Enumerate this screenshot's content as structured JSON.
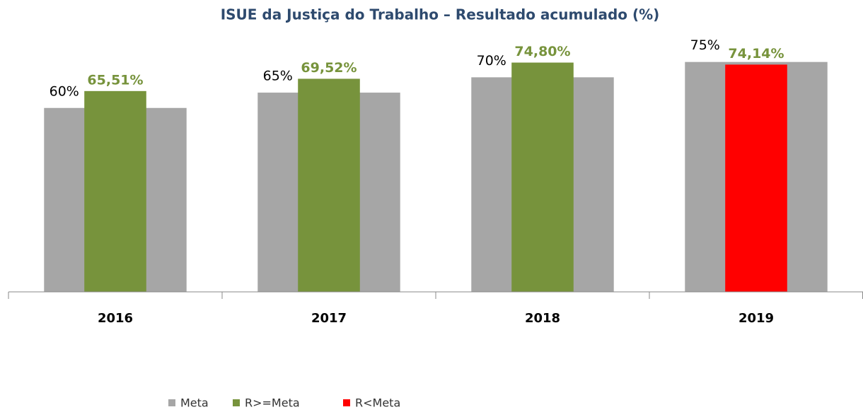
{
  "chart_data": {
    "type": "bar",
    "title": "ISUE da Justiça do Trabalho – Resultado acumulado (%)",
    "categories": [
      "2016",
      "2017",
      "2018",
      "2019"
    ],
    "series": [
      {
        "name": "Meta",
        "color": "#a6a6a6",
        "values": [
          60,
          65,
          70,
          75
        ],
        "value_labels": [
          "60%",
          "65%",
          "70%",
          "75%"
        ]
      },
      {
        "name": "R>=Meta",
        "color": "#77933c",
        "values": [
          65.51,
          69.52,
          74.8,
          null
        ],
        "value_labels": [
          "65,51%",
          "69,52%",
          "74,80%",
          null
        ]
      },
      {
        "name": "R<Meta",
        "color": "#ff0000",
        "values": [
          null,
          null,
          null,
          74.14
        ],
        "value_labels": [
          null,
          null,
          null,
          "74,14%"
        ]
      }
    ],
    "label_color": "#77933c",
    "ylim": [
      0,
      80
    ],
    "grid": false
  }
}
